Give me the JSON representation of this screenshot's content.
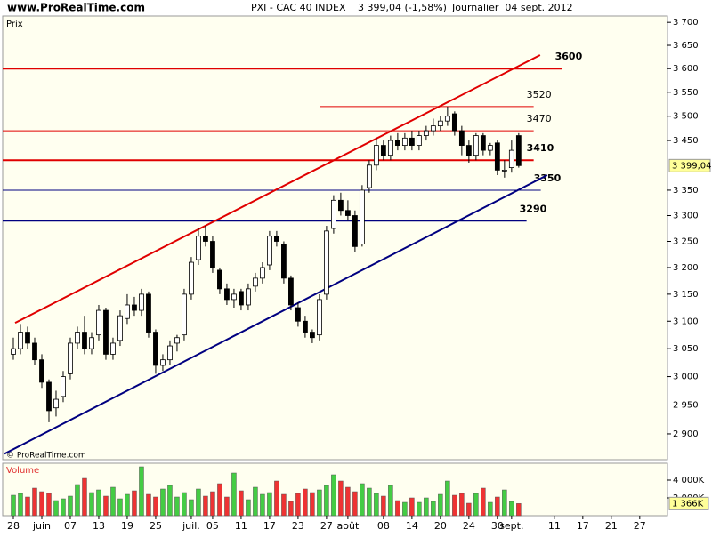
{
  "site": "www.ProRealTime.com",
  "header": {
    "symbol": "PXI - CAC 40 INDEX",
    "quote": "3 399,04 (-1,58%)",
    "period": "Journalier  04 sept. 2012"
  },
  "chart_data": [
    {
      "type": "candlestick",
      "y_label": "Prix",
      "copyright": "© ProRealTime.com",
      "log": true,
      "xlim": [
        -1.5,
        91.9
      ],
      "ylim": [
        2856,
        3714
      ],
      "yticks": [
        {
          "value": 3700,
          "label": "3 700"
        },
        {
          "value": 3650,
          "label": "3 650"
        },
        {
          "value": 3600,
          "label": "3 600"
        },
        {
          "value": 3550,
          "label": "3 550"
        },
        {
          "value": 3500,
          "label": "3 500"
        },
        {
          "value": 3450,
          "label": "3 450"
        },
        {
          "value": 3350,
          "label": "3 350"
        },
        {
          "value": 3300,
          "label": "3 300"
        },
        {
          "value": 3250,
          "label": "3 250"
        },
        {
          "value": 3200,
          "label": "3 200"
        },
        {
          "value": 3150,
          "label": "3 150"
        },
        {
          "value": 3100,
          "label": "3 100"
        },
        {
          "value": 3050,
          "label": "3 050"
        },
        {
          "value": 3000,
          "label": "3 000"
        },
        {
          "value": 2950,
          "label": "2 950"
        },
        {
          "value": 2900,
          "label": "2 900"
        }
      ],
      "up_color": "#ffffff",
      "down_color": "#000000",
      "open": [
        3040,
        3050,
        3080,
        3060,
        3030,
        2990,
        2945,
        2965,
        3005,
        3060,
        3080,
        3050,
        3075,
        3120,
        3040,
        3065,
        3105,
        3130,
        3120,
        3150,
        3080,
        3020,
        3030,
        3060,
        3075,
        3150,
        3215,
        3260,
        3250,
        3195,
        3160,
        3140,
        3155,
        3130,
        3165,
        3180,
        3205,
        3260,
        3245,
        3180,
        3125,
        3100,
        3080,
        3075,
        3150,
        3275,
        3330,
        3310,
        3300,
        3245,
        3355,
        3400,
        3440,
        3420,
        3450,
        3440,
        3455,
        3440,
        3460,
        3470,
        3480,
        3490,
        3505,
        3470,
        3440,
        3420,
        3460,
        3430,
        3445,
        3390,
        3395,
        3460
      ],
      "high": [
        3070,
        3095,
        3090,
        3070,
        3040,
        2995,
        2975,
        3010,
        3070,
        3090,
        3110,
        3080,
        3130,
        3125,
        3070,
        3120,
        3150,
        3145,
        3160,
        3155,
        3085,
        3040,
        3065,
        3075,
        3160,
        3220,
        3275,
        3280,
        3260,
        3200,
        3170,
        3160,
        3160,
        3170,
        3190,
        3210,
        3270,
        3270,
        3250,
        3185,
        3135,
        3110,
        3085,
        3150,
        3280,
        3340,
        3345,
        3330,
        3310,
        3360,
        3410,
        3455,
        3450,
        3460,
        3465,
        3465,
        3470,
        3470,
        3480,
        3495,
        3500,
        3520,
        3510,
        3480,
        3450,
        3465,
        3465,
        3445,
        3450,
        3410,
        3450,
        3465
      ],
      "low": [
        3030,
        3040,
        3050,
        3020,
        2980,
        2920,
        2930,
        2955,
        2995,
        3050,
        3040,
        3040,
        3065,
        3030,
        3030,
        3055,
        3095,
        3110,
        3110,
        3070,
        3005,
        3010,
        3020,
        3045,
        3065,
        3140,
        3205,
        3240,
        3190,
        3150,
        3130,
        3125,
        3120,
        3120,
        3155,
        3170,
        3195,
        3240,
        3170,
        3120,
        3090,
        3070,
        3060,
        3065,
        3140,
        3265,
        3300,
        3290,
        3230,
        3240,
        3345,
        3390,
        3410,
        3410,
        3430,
        3430,
        3430,
        3430,
        3450,
        3460,
        3470,
        3480,
        3460,
        3420,
        3405,
        3410,
        3420,
        3420,
        3380,
        3375,
        3385,
        3395
      ],
      "close": [
        3050,
        3080,
        3060,
        3030,
        2990,
        2940,
        2960,
        3000,
        3060,
        3080,
        3050,
        3070,
        3120,
        3040,
        3060,
        3110,
        3130,
        3120,
        3150,
        3080,
        3020,
        3030,
        3055,
        3070,
        3150,
        3210,
        3260,
        3250,
        3200,
        3160,
        3140,
        3150,
        3130,
        3160,
        3180,
        3200,
        3260,
        3250,
        3180,
        3130,
        3100,
        3080,
        3070,
        3140,
        3270,
        3330,
        3310,
        3300,
        3240,
        3350,
        3400,
        3440,
        3420,
        3450,
        3440,
        3455,
        3440,
        3460,
        3470,
        3480,
        3490,
        3500,
        3470,
        3440,
        3420,
        3460,
        3430,
        3440,
        3390,
        3390,
        3430,
        3399.04
      ],
      "last_label": "3 399,04",
      "levels": [
        {
          "value": 3600,
          "label": "3600",
          "color": "#e00000",
          "width": 2,
          "bold": true,
          "from": -1.5,
          "to": 77.1
        },
        {
          "value": 3520,
          "label": "3520",
          "color": "#e00000",
          "width": 1,
          "bold": false,
          "from": 43.1,
          "to": 73.1
        },
        {
          "value": 3470,
          "label": "3470",
          "color": "#e00000",
          "width": 1,
          "bold": false,
          "from": -1.5,
          "to": 73.1
        },
        {
          "value": 3410,
          "label": "3410",
          "color": "#e00000",
          "width": 2,
          "bold": true,
          "from": -1.5,
          "to": 73.1
        },
        {
          "value": 3350,
          "label": "3350",
          "color": "#000080",
          "width": 1,
          "bold": true,
          "from": -1.5,
          "to": 74.1
        },
        {
          "value": 3290,
          "label": "3290",
          "color": "#000080",
          "width": 2,
          "bold": true,
          "from": -1.5,
          "to": 72.1
        }
      ],
      "trendlines": [
        {
          "color": "#e00000",
          "x": [
            0.25,
            74
          ],
          "y": [
            3097,
            3629
          ]
        },
        {
          "color": "#000080",
          "x": [
            -1.25,
            75
          ],
          "y": [
            2866,
            3380
          ]
        }
      ]
    },
    {
      "type": "bar",
      "y_label": "Volume",
      "xlim": [
        -1.5,
        91.9
      ],
      "ylim": [
        0,
        5900
      ],
      "yticks": [
        {
          "value": 4000,
          "label": "4 000K"
        },
        {
          "value": 2000,
          "label": "2 000K"
        }
      ],
      "up_color": "#44cc44",
      "down_color": "#ee3333",
      "values": [
        2300,
        2500,
        2100,
        3100,
        2700,
        2500,
        1700,
        1900,
        2200,
        3500,
        4200,
        2600,
        2900,
        2200,
        3200,
        1900,
        2400,
        2800,
        5500,
        2400,
        2100,
        3000,
        3400,
        2100,
        2600,
        1800,
        3000,
        2200,
        2700,
        3600,
        2100,
        4800,
        2800,
        1800,
        3200,
        2400,
        2600,
        3900,
        2400,
        1600,
        2500,
        3000,
        2600,
        2900,
        3400,
        4600,
        3900,
        3200,
        2700,
        3600,
        3100,
        2500,
        2200,
        3400,
        1700,
        1500,
        2000,
        1500,
        2000,
        1600,
        2400,
        3900,
        2300,
        2500,
        1400,
        2500,
        3100,
        1500,
        2100,
        2900,
        1600,
        1366
      ],
      "last_label": "1 366K",
      "xticks": [
        {
          "value": 0,
          "label": "28"
        },
        {
          "value": 4,
          "label": "juin"
        },
        {
          "value": 8,
          "label": "07"
        },
        {
          "value": 12,
          "label": "13"
        },
        {
          "value": 16,
          "label": "19"
        },
        {
          "value": 20,
          "label": "25"
        },
        {
          "value": 25,
          "label": "juil."
        },
        {
          "value": 28,
          "label": "05"
        },
        {
          "value": 32,
          "label": "11"
        },
        {
          "value": 36,
          "label": "17"
        },
        {
          "value": 40,
          "label": "23"
        },
        {
          "value": 44,
          "label": "27"
        },
        {
          "value": 47,
          "label": "août"
        },
        {
          "value": 52,
          "label": "08"
        },
        {
          "value": 56,
          "label": "14"
        },
        {
          "value": 60,
          "label": "20"
        },
        {
          "value": 64,
          "label": "24"
        },
        {
          "value": 68,
          "label": "30"
        },
        {
          "value": 70,
          "label": "sept."
        },
        {
          "value": 76,
          "label": "11"
        },
        {
          "value": 80,
          "label": "17"
        },
        {
          "value": 84,
          "label": "21"
        },
        {
          "value": 88,
          "label": "27"
        }
      ]
    }
  ]
}
